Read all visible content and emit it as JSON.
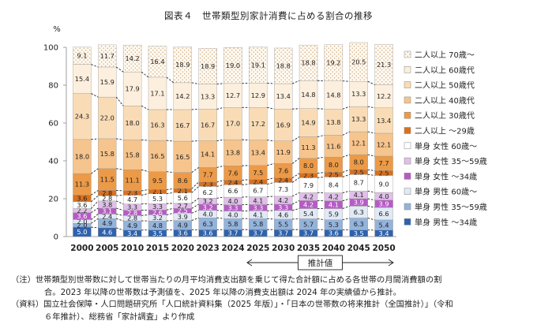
{
  "title": "図表４　世帯類型別家計消費に占める割合の推移",
  "chart_data": {
    "type": "bar",
    "stacked": true,
    "ylabel": "%",
    "ylim": [
      0,
      100
    ],
    "yticks": [
      0,
      20,
      40,
      60,
      80,
      100
    ],
    "categories": [
      "2000",
      "2005",
      "2010",
      "2015",
      "2020",
      "2023",
      "2024",
      "2025",
      "2030",
      "2035",
      "2040",
      "2045",
      "2050"
    ],
    "projection_label": "推計値",
    "projection_start": "2025",
    "projection_end": "2050",
    "series": [
      {
        "name": "単身 男性 ～34歳",
        "color": "#2f62ad",
        "label_color": "#ffffff",
        "values": [
          5.0,
          4.6,
          3.4,
          3.5,
          3.6,
          3.6,
          3.7,
          3.7,
          3.7,
          3.7,
          3.6,
          3.5,
          3.4
        ]
      },
      {
        "name": "単身 男性 35～59歳",
        "color": "#93b3db",
        "label_color": "#222222",
        "values": [
          2.0,
          4.9,
          4.9,
          4.8,
          4.9,
          6.3,
          5.8,
          5.8,
          5.5,
          5.7,
          5.3,
          6.3,
          5.4
        ]
      },
      {
        "name": "単身 男性 60歳～",
        "color": "#e1e9f5",
        "label_color": "#222222",
        "values": [
          2.0,
          2.4,
          2.8,
          3.2,
          3.9,
          4.0,
          4.0,
          4.1,
          4.6,
          5.4,
          5.9,
          6.3,
          6.6
        ]
      },
      {
        "name": "単身 女性 ～34歳",
        "color": "#b65bc6",
        "label_color": "#ffffff",
        "values": [
          3.6,
          3.1,
          2.8,
          2.6,
          2.5,
          3.2,
          3.3,
          3.3,
          3.3,
          4.2,
          4.1,
          3.9,
          3.9
        ]
      },
      {
        "name": "単身 女性 35～59歳",
        "color": "#e0c0e8",
        "label_color": "#222222",
        "values": [
          2.2,
          3.8,
          3.3,
          3.3,
          2.7,
          3.2,
          4.0,
          4.1,
          4.2,
          4.2,
          4.2,
          4.1,
          4.0
        ]
      },
      {
        "name": "単身 女性 60歳～",
        "color": "#ffffff",
        "label_color": "#222222",
        "values": [
          3.6,
          2.8,
          4.7,
          5.3,
          5.6,
          6.2,
          6.6,
          6.7,
          7.3,
          7.9,
          8.4,
          8.7,
          9.0
        ]
      },
      {
        "name": "二人以上 ～29歳",
        "color": "#d8701f",
        "label_color": "#222222",
        "values": [
          3.6,
          2.8,
          2.3,
          2.1,
          2.1,
          2.3,
          2.4,
          2.4,
          2.4,
          2.3,
          2.5,
          2.5,
          2.5
        ]
      },
      {
        "name": "二人以上 30歳代",
        "color": "#ec9a47",
        "label_color": "#222222",
        "values": [
          11.3,
          11.5,
          11.1,
          9.5,
          8.6,
          7.7,
          7.6,
          7.5,
          7.6,
          8.0,
          8.0,
          8.0,
          7.7
        ]
      },
      {
        "name": "二人以上 40歳代",
        "color": "#f6c48d",
        "label_color": "#222222",
        "values": [
          18.0,
          15.8,
          15.8,
          16.5,
          16.5,
          14.1,
          13.8,
          13.4,
          11.9,
          11.3,
          11.6,
          12.1,
          12.1
        ]
      },
      {
        "name": "二人以上 50歳代",
        "color": "#f9dcb6",
        "label_color": "#222222",
        "values": [
          24.3,
          22.0,
          18.0,
          16.3,
          16.7,
          16.7,
          17.0,
          17.2,
          16.9,
          14.9,
          13.8,
          13.3,
          13.4
        ]
      },
      {
        "name": "二人以上 60歳代",
        "color": "#fdefdd",
        "label_color": "#222222",
        "values": [
          15.4,
          15.9,
          17.9,
          17.1,
          14.2,
          13.3,
          12.7,
          12.9,
          13.4,
          14.8,
          14.8,
          13.3,
          12.2
        ]
      },
      {
        "name": "二人以上 70歳～",
        "color": "#fff9f0",
        "label_color": "#222222",
        "values": [
          9.1,
          11.7,
          14.2,
          16.4,
          18.9,
          18.9,
          19.0,
          19.1,
          18.8,
          18.8,
          19.2,
          20.5,
          21.3
        ]
      }
    ]
  },
  "notes": [
    "（注）世帯類型別世帯数に対して世帯当たりの月平均消費支出額を乗じて得た合計額に占める各世帯の月間消費額の割",
    "合。2023 年以降の世帯数は予測値を、2025 年以降の消費支出額は 2024 年の実績値から推計。",
    "（資料）国立社会保障・人口問題研究所「人口統計資料集（2025 年版）」・「日本の世帯数の将来推計（全国推計）」（令和",
    "６年推計）、総務省「家計調査」より作成"
  ],
  "colors": {
    "dashed_connector": "#222222",
    "axis": "#888888",
    "dotted_pattern": "#c8a070"
  }
}
